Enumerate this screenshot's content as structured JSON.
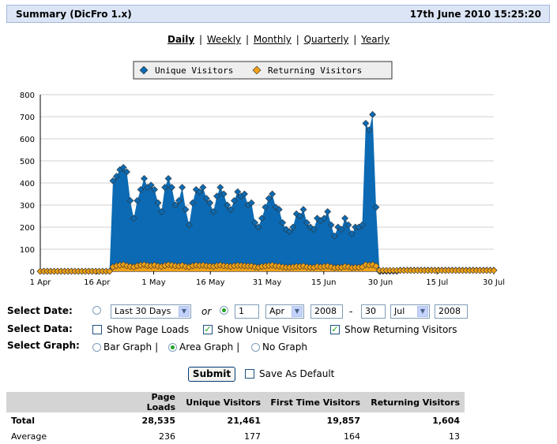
{
  "header": {
    "title": "Summary (DicFro 1.x)",
    "datetime": "17th June 2010 15:25:20"
  },
  "periods": [
    "Daily",
    "Weekly",
    "Monthly",
    "Quarterly",
    "Yearly"
  ],
  "active_period": "Daily",
  "colors": {
    "unique": "#0b6ab3",
    "returning": "#f0a116",
    "header_bg": "#dbe5f5"
  },
  "chart_data": {
    "type": "area",
    "series": [
      {
        "name": "Unique Visitors",
        "values": [
          0,
          0,
          0,
          0,
          0,
          0,
          0,
          0,
          0,
          0,
          0,
          0,
          0,
          0,
          0,
          0,
          0,
          0,
          0,
          0,
          0,
          410,
          430,
          460,
          470,
          450,
          320,
          240,
          320,
          370,
          420,
          380,
          390,
          370,
          310,
          270,
          380,
          420,
          380,
          300,
          320,
          380,
          280,
          210,
          310,
          370,
          360,
          380,
          330,
          310,
          270,
          340,
          380,
          350,
          300,
          280,
          320,
          360,
          340,
          350,
          300,
          310,
          220,
          200,
          240,
          290,
          330,
          350,
          290,
          280,
          220,
          190,
          180,
          200,
          260,
          250,
          280,
          220,
          200,
          190,
          240,
          230,
          240,
          270,
          210,
          160,
          200,
          190,
          240,
          210,
          170,
          200,
          200,
          210,
          670,
          640,
          710,
          290,
          0,
          0,
          0,
          0,
          0,
          0,
          5,
          5,
          5,
          5,
          5,
          5,
          5,
          5,
          5,
          5,
          5,
          5,
          5,
          5,
          5,
          5,
          5,
          5,
          5,
          5,
          5,
          5,
          5,
          5,
          5,
          5,
          5,
          5
        ]
      },
      {
        "name": "Returning Visitors",
        "values": [
          0,
          0,
          0,
          0,
          0,
          0,
          0,
          0,
          0,
          0,
          0,
          0,
          0,
          0,
          0,
          0,
          0,
          0,
          0,
          0,
          0,
          20,
          25,
          28,
          30,
          25,
          22,
          20,
          25,
          28,
          30,
          26,
          25,
          28,
          24,
          22,
          26,
          30,
          28,
          25,
          24,
          27,
          22,
          20,
          25,
          28,
          26,
          28,
          25,
          24,
          22,
          26,
          28,
          25,
          24,
          22,
          25,
          27,
          26,
          25,
          24,
          24,
          20,
          18,
          22,
          24,
          26,
          28,
          24,
          23,
          20,
          18,
          18,
          20,
          22,
          22,
          24,
          20,
          18,
          18,
          22,
          20,
          22,
          24,
          20,
          16,
          18,
          18,
          22,
          20,
          16,
          18,
          18,
          20,
          30,
          28,
          30,
          24,
          4,
          4,
          4,
          4,
          4,
          4,
          4,
          4,
          4,
          4,
          4,
          4,
          4,
          4,
          4,
          4,
          4,
          4,
          4,
          4,
          4,
          4,
          4,
          4,
          4,
          4,
          4,
          4,
          4,
          4,
          4,
          4,
          4,
          4
        ]
      }
    ],
    "x_start": "1 Apr",
    "x_end": "30 Jul",
    "x_tick_labels": [
      "1 Apr",
      "16 Apr",
      "1 May",
      "16 May",
      "31 May",
      "15 Jun",
      "30 Jun",
      "15 Jul",
      "30 Jul"
    ],
    "y_ticks": [
      0,
      100,
      200,
      300,
      400,
      500,
      600,
      700,
      800
    ],
    "ylim": [
      0,
      800
    ],
    "grid": true,
    "legend_position": "top"
  },
  "controls": {
    "select_date_label": "Select Date:",
    "range_option": "Last 30 Days",
    "or_label": "or",
    "from_day": "1",
    "from_month": "Apr",
    "from_year": "2008",
    "dash": "-",
    "to_day": "30",
    "to_month": "Jul",
    "to_year": "2008",
    "select_data_label": "Select Data:",
    "show_page_loads": "Show Page Loads",
    "show_unique": "Show Unique Visitors",
    "show_returning": "Show Returning Visitors",
    "select_graph_label": "Select Graph:",
    "bar_graph": "Bar Graph",
    "area_graph": "Area Graph",
    "no_graph": "No Graph",
    "pipe": "|",
    "submit": "Submit",
    "save_default": "Save As Default",
    "check_mark": "✓"
  },
  "stats": {
    "headers": [
      "Page Loads",
      "Unique Visitors",
      "First Time Visitors",
      "Returning Visitors"
    ],
    "rows": [
      {
        "label": "Total",
        "values": [
          "28,535",
          "21,461",
          "19,857",
          "1,604"
        ]
      },
      {
        "label": "Average",
        "values": [
          "236",
          "177",
          "164",
          "13"
        ]
      }
    ]
  }
}
